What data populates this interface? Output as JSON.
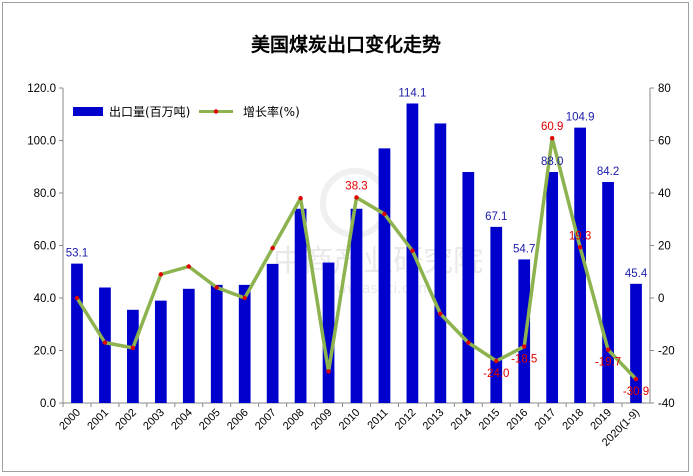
{
  "chart_data": {
    "type": "bar",
    "title": "美国煤炭出口变化走势",
    "categories": [
      "2000",
      "2001",
      "2002",
      "2003",
      "2004",
      "2005",
      "2006",
      "2007",
      "2008",
      "2009",
      "2010",
      "2011",
      "2012",
      "2013",
      "2014",
      "2015",
      "2016",
      "2017",
      "2018",
      "2019",
      "2020(1-9)"
    ],
    "series": [
      {
        "name": "出口量(百万吨)",
        "type": "bar",
        "axis": "left",
        "color": "#0000cc",
        "values": [
          53.1,
          44.0,
          35.5,
          39.0,
          43.5,
          45.0,
          45.0,
          53.0,
          74.0,
          53.5,
          74.0,
          97.0,
          114.1,
          106.5,
          88.0,
          67.1,
          54.7,
          88.0,
          104.9,
          84.2,
          45.4
        ]
      },
      {
        "name": "增长率(%)",
        "type": "line",
        "axis": "right",
        "color": "#8db34f",
        "marker_color": "#e00000",
        "values": [
          0,
          -17,
          -19,
          9,
          12,
          4,
          0,
          19,
          38,
          -28,
          38.3,
          32,
          18,
          -6,
          -17,
          -24.0,
          -18.5,
          60.9,
          19.3,
          -19.7,
          -30.9
        ]
      }
    ],
    "bar_labels": [
      {
        "index": 0,
        "text": "53.1"
      },
      {
        "index": 12,
        "text": "114.1"
      },
      {
        "index": 15,
        "text": "67.1"
      },
      {
        "index": 16,
        "text": "54.7"
      },
      {
        "index": 17,
        "text": "88.0"
      },
      {
        "index": 18,
        "text": "104.9"
      },
      {
        "index": 19,
        "text": "84.2"
      },
      {
        "index": 20,
        "text": "45.4"
      }
    ],
    "line_labels": [
      {
        "index": 10,
        "text": "38.3"
      },
      {
        "index": 15,
        "text": "-24.0"
      },
      {
        "index": 16,
        "text": "-18.5"
      },
      {
        "index": 17,
        "text": "60.9"
      },
      {
        "index": 18,
        "text": "19.3"
      },
      {
        "index": 19,
        "text": "-19.7"
      },
      {
        "index": 20,
        "text": "-30.9"
      }
    ],
    "y_left": {
      "min": 0,
      "max": 120,
      "step": 20,
      "decimals": 1
    },
    "y_right": {
      "min": -40,
      "max": 80,
      "step": 20
    },
    "legend_position": "top-left",
    "grid": false
  },
  "watermark": {
    "line1": "中商产业研究院",
    "line2": "www.askci.com"
  }
}
